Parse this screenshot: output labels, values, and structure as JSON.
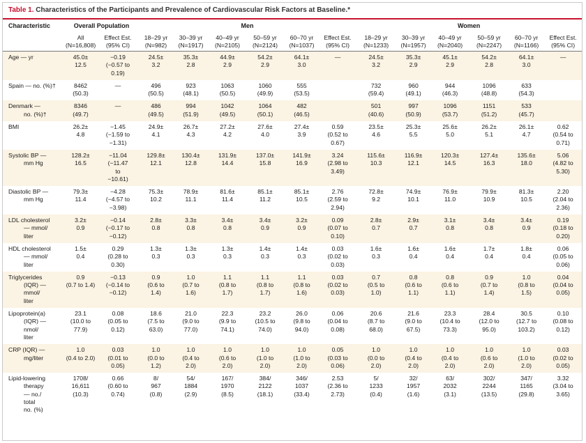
{
  "title": {
    "label": "Table 1.",
    "text": "Characteristics of the Participants and Prevalence of Cardiovascular Risk Factors at Baseline.*"
  },
  "headers": {
    "characteristic": "Characteristic",
    "overall": "Overall Population",
    "men": "Men",
    "women": "Women",
    "columns": [
      [
        "All",
        "(N=16,808)"
      ],
      [
        "Effect Est.",
        "(95% CI)"
      ],
      [
        "18–29 yr",
        "(N=982)"
      ],
      [
        "30–39 yr",
        "(N=1917)"
      ],
      [
        "40–49 yr",
        "(N=2105)"
      ],
      [
        "50–59 yr",
        "(N=2124)"
      ],
      [
        "60–70 yr",
        "(N=1037)"
      ],
      [
        "Effect Est.",
        "(95% CI)"
      ],
      [
        "18–29 yr",
        "(N=1233)"
      ],
      [
        "30–39 yr",
        "(N=1957)"
      ],
      [
        "40–49 yr",
        "(N=2040)"
      ],
      [
        "50–59 yr",
        "(N=2247)"
      ],
      [
        "60–70 yr",
        "(N=1166)"
      ],
      [
        "Effect Est.",
        "(95% CI)"
      ]
    ]
  },
  "rows": [
    {
      "label": [
        "Age — yr"
      ],
      "shaded": true,
      "cells": [
        [
          "45.0±",
          "12.5"
        ],
        [
          "−0.19",
          "(−0.57 to",
          "0.19)"
        ],
        [
          "24.5±",
          "3.2"
        ],
        [
          "35.3±",
          "2.8"
        ],
        [
          "44.9±",
          "2.9"
        ],
        [
          "54.2±",
          "2.9"
        ],
        [
          "64.1±",
          "3.0"
        ],
        [
          "—"
        ],
        [
          "24.5±",
          "3.2"
        ],
        [
          "35.3±",
          "2.9"
        ],
        [
          "45.1±",
          "2.9"
        ],
        [
          "54.2±",
          "2.8"
        ],
        [
          "64.1±",
          "3.0"
        ],
        [
          "—"
        ]
      ]
    },
    {
      "label": [
        "Spain — no. (%)†"
      ],
      "shaded": false,
      "cells": [
        [
          "8462",
          "(50.3)"
        ],
        [
          "—"
        ],
        [
          "496",
          "(50.5)"
        ],
        [
          "923",
          "(48.1)"
        ],
        [
          "1063",
          "(50.5)"
        ],
        [
          "1060",
          "(49.9)"
        ],
        [
          "555",
          "(53.5)"
        ],
        [
          ""
        ],
        [
          "732",
          "(59.4)"
        ],
        [
          "960",
          "(49.1)"
        ],
        [
          "944",
          "(46.3)"
        ],
        [
          "1096",
          "(48.8)"
        ],
        [
          "633",
          "(54.3)"
        ],
        [
          ""
        ]
      ]
    },
    {
      "label": [
        "Denmark —",
        "no. (%)†"
      ],
      "shaded": true,
      "cells": [
        [
          "8346",
          "(49.7)"
        ],
        [
          "—"
        ],
        [
          "486",
          "(49.5)"
        ],
        [
          "994",
          "(51.9)"
        ],
        [
          "1042",
          "(49.5)"
        ],
        [
          "1064",
          "(50.1)"
        ],
        [
          "482",
          "(46.5)"
        ],
        [
          ""
        ],
        [
          "501",
          "(40.6)"
        ],
        [
          "997",
          "(50.9)"
        ],
        [
          "1096",
          "(53.7)"
        ],
        [
          "1151",
          "(51.2)"
        ],
        [
          "533",
          "(45.7)"
        ],
        [
          ""
        ]
      ]
    },
    {
      "label": [
        "BMI"
      ],
      "shaded": false,
      "cells": [
        [
          "26.2±",
          "4.8"
        ],
        [
          "−1.45",
          "(−1.59 to",
          "−1.31)"
        ],
        [
          "24.9±",
          "4.1"
        ],
        [
          "26.7±",
          "4.3"
        ],
        [
          "27.2±",
          "4.2"
        ],
        [
          "27.6±",
          "4.0"
        ],
        [
          "27.4±",
          "3.9"
        ],
        [
          "0.59",
          "(0.52 to",
          "0.67)"
        ],
        [
          "23.5±",
          "4.6"
        ],
        [
          "25.3±",
          "5.5"
        ],
        [
          "25.6±",
          "5.0"
        ],
        [
          "26.2±",
          "5.1"
        ],
        [
          "26.1±",
          "4.7"
        ],
        [
          "0.62",
          "(0.54 to",
          "0.71)"
        ]
      ]
    },
    {
      "label": [
        "Systolic BP —",
        "mm Hg"
      ],
      "shaded": true,
      "cells": [
        [
          "128.2±",
          "16.5"
        ],
        [
          "−11.04",
          "(−11.47",
          "to",
          "−10.61)"
        ],
        [
          "129.8±",
          "12.1"
        ],
        [
          "130.4±",
          "12.8"
        ],
        [
          "131.9±",
          "14.4"
        ],
        [
          "137.0±",
          "15.8"
        ],
        [
          "141.9±",
          "16.9"
        ],
        [
          "3.24",
          "(2.98 to",
          "3.49)"
        ],
        [
          "115.6±",
          "10.3"
        ],
        [
          "116.9±",
          "12.1"
        ],
        [
          "120.3±",
          "14.5"
        ],
        [
          "127.4±",
          "16.3"
        ],
        [
          "135.6±",
          "18.0"
        ],
        [
          "5.06",
          "(4.82 to",
          "5.30)"
        ]
      ]
    },
    {
      "label": [
        "Diastolic BP —",
        "mm Hg"
      ],
      "shaded": false,
      "cells": [
        [
          "79.3±",
          "11.4"
        ],
        [
          "−4.28",
          "(−4.57 to",
          "−3.98)"
        ],
        [
          "75.3±",
          "10.2"
        ],
        [
          "78.9±",
          "11.1"
        ],
        [
          "81.6±",
          "11.4"
        ],
        [
          "85.1±",
          "11.2"
        ],
        [
          "85.1±",
          "10.5"
        ],
        [
          "2.76",
          "(2.59 to",
          "2.94)"
        ],
        [
          "72.8±",
          "9.2"
        ],
        [
          "74.9±",
          "10.1"
        ],
        [
          "76.9±",
          "11.0"
        ],
        [
          "79.9±",
          "10.9"
        ],
        [
          "81.3±",
          "10.5"
        ],
        [
          "2.20",
          "(2.04 to",
          "2.36)"
        ]
      ]
    },
    {
      "label": [
        "LDL cholesterol",
        "— mmol/",
        "liter"
      ],
      "shaded": true,
      "cells": [
        [
          "3.2±",
          "0.9"
        ],
        [
          "−0.14",
          "(−0.17 to",
          "−0.12)"
        ],
        [
          "2.8±",
          "0.8"
        ],
        [
          "3.3±",
          "0.8"
        ],
        [
          "3.4±",
          "0.8"
        ],
        [
          "3.4±",
          "0.9"
        ],
        [
          "3.2±",
          "0.9"
        ],
        [
          "0.09",
          "(0.07 to",
          "0.10)"
        ],
        [
          "2.8±",
          "0.7"
        ],
        [
          "2.9±",
          "0.7"
        ],
        [
          "3.1±",
          "0.8"
        ],
        [
          "3.4±",
          "0.8"
        ],
        [
          "3.4±",
          "0.9"
        ],
        [
          "0.19",
          "(0.18 to",
          "0.20)"
        ]
      ]
    },
    {
      "label": [
        "HDL cholesterol",
        "— mmol/",
        "liter"
      ],
      "shaded": false,
      "cells": [
        [
          "1.5±",
          "0.4"
        ],
        [
          "0.29",
          "(0.28 to",
          "0.30)"
        ],
        [
          "1.3±",
          "0.3"
        ],
        [
          "1.3±",
          "0.3"
        ],
        [
          "1.3±",
          "0.3"
        ],
        [
          "1.4±",
          "0.3"
        ],
        [
          "1.4±",
          "0.3"
        ],
        [
          "0.03",
          "(0.02 to",
          "0.03)"
        ],
        [
          "1.6±",
          "0.3"
        ],
        [
          "1.6±",
          "0.4"
        ],
        [
          "1.6±",
          "0.4"
        ],
        [
          "1.7±",
          "0.4"
        ],
        [
          "1.8±",
          "0.4"
        ],
        [
          "0.06",
          "(0.05 to",
          "0.06)"
        ]
      ]
    },
    {
      "label": [
        "Triglycerides",
        "(IQR) —",
        "mmol/",
        "liter"
      ],
      "shaded": true,
      "cells": [
        [
          "0.9",
          "(0.7 to 1.4)"
        ],
        [
          "−0.13",
          "(−0.14 to",
          "−0.12)"
        ],
        [
          "0.9",
          "(0.6 to",
          "1.4)"
        ],
        [
          "1.0",
          "(0.7 to",
          "1.6)"
        ],
        [
          "1.1",
          "(0.8 to",
          "1.7)"
        ],
        [
          "1.1",
          "(0.8 to",
          "1.7)"
        ],
        [
          "1.1",
          "(0.8 to",
          "1.6)"
        ],
        [
          "0.03",
          "(0.02 to",
          "0.03)"
        ],
        [
          "0.7",
          "(0.5 to",
          "1.0)"
        ],
        [
          "0.8",
          "(0.6 to",
          "1.1)"
        ],
        [
          "0.8",
          "(0.6 to",
          "1.1)"
        ],
        [
          "0.9",
          "(0.7 to",
          "1.4)"
        ],
        [
          "1.0",
          "(0.8 to",
          "1.5)"
        ],
        [
          "0.04",
          "(0.04 to",
          "0.05)"
        ]
      ]
    },
    {
      "label": [
        "Lipoprotein(a)",
        "(IQR) —",
        "nmol/",
        "liter"
      ],
      "shaded": false,
      "cells": [
        [
          "23.1",
          "(10.0 to",
          "77.9)"
        ],
        [
          "0.08",
          "(0.05 to",
          "0.12)"
        ],
        [
          "18.6",
          "(7.5 to",
          "63.0)"
        ],
        [
          "21.0",
          "(9.0 to",
          "77.0)"
        ],
        [
          "22.3",
          "(9.9 to",
          "74.1)"
        ],
        [
          "23.2",
          "(10.5 to",
          "74.0)"
        ],
        [
          "26.0",
          "(9.8 to",
          "94.0)"
        ],
        [
          "0.06",
          "(0.04 to",
          "0.08)"
        ],
        [
          "20.6",
          "(8.7 to",
          "68.0)"
        ],
        [
          "21.6",
          "(9.0 to",
          "67.5)"
        ],
        [
          "23.3",
          "(10.4 to",
          "73.3)"
        ],
        [
          "28.4",
          "(12.0 to",
          "95.0)"
        ],
        [
          "30.5",
          "(12.7 to",
          "103.2)"
        ],
        [
          "0.10",
          "(0.08 to",
          "0.12)"
        ]
      ]
    },
    {
      "label": [
        "CRP (IQR) —",
        "mg/liter"
      ],
      "shaded": true,
      "cells": [
        [
          "1.0",
          "(0.4 to 2.0)"
        ],
        [
          "0.03",
          "(0.01 to",
          "0.05)"
        ],
        [
          "1.0",
          "(0.0 to",
          "1.2)"
        ],
        [
          "1.0",
          "(0.4 to",
          "2.0)"
        ],
        [
          "1.0",
          "(0.6 to",
          "2.0)"
        ],
        [
          "1.0",
          "(1.0 to",
          "2.0)"
        ],
        [
          "1.0",
          "(1.0 to",
          "2.0)"
        ],
        [
          "0.05",
          "(0.03 to",
          "0.06)"
        ],
        [
          "1.0",
          "(0.0 to",
          "2.0)"
        ],
        [
          "1.0",
          "(0.4 to",
          "2.0)"
        ],
        [
          "1.0",
          "(0.4 to",
          "2.0)"
        ],
        [
          "1.0",
          "(0.6 to",
          "2.0)"
        ],
        [
          "1.0",
          "(1.0 to",
          "2.0)"
        ],
        [
          "0.03",
          "(0.02 to",
          "0.05)"
        ]
      ]
    },
    {
      "label": [
        "Lipid-lowering",
        "therapy",
        "— no./",
        "total",
        "no. (%)"
      ],
      "shaded": false,
      "cells": [
        [
          "1708/",
          "16,611",
          "(10.3)"
        ],
        [
          "0.66",
          "(0.60 to",
          "0.74)"
        ],
        [
          "8/",
          "967",
          "(0.8)"
        ],
        [
          "54/",
          "1884",
          "(2.9)"
        ],
        [
          "167/",
          "1970",
          "(8.5)"
        ],
        [
          "384/",
          "2122",
          "(18.1)"
        ],
        [
          "346/",
          "1037",
          "(33.4)"
        ],
        [
          "2.53",
          "(2.36 to",
          "2.73)"
        ],
        [
          "5/",
          "1233",
          "(0.4)"
        ],
        [
          "32/",
          "1957",
          "(1.6)"
        ],
        [
          "63/",
          "2032",
          "(3.1)"
        ],
        [
          "302/",
          "2244",
          "(13.5)"
        ],
        [
          "347/",
          "1165",
          "(29.8)"
        ],
        [
          "3.32",
          "(3.04 to",
          "3.65)"
        ]
      ]
    }
  ]
}
